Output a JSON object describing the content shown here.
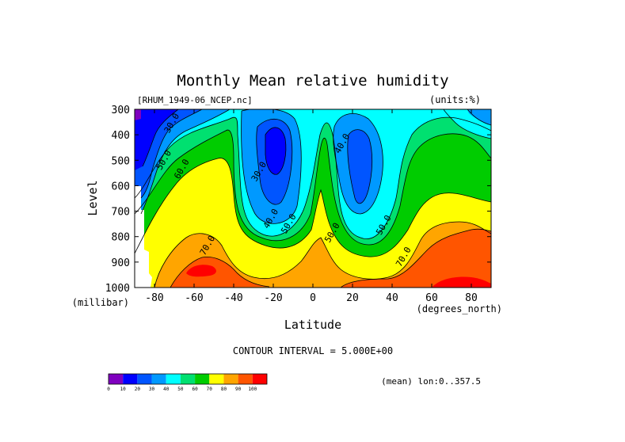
{
  "chart_data": {
    "type": "contour",
    "title": "Monthly Mean relative humidity",
    "dataset_label": "[RHUM_1949-06_NCEP.nc]",
    "units_label": "(units:%)",
    "xlabel": "Latitude",
    "x_units_label": "(degrees_north)",
    "ylabel": "Level",
    "y_units_label": "(millibar)",
    "xlim": [
      -90,
      90
    ],
    "ylim": [
      1000,
      300
    ],
    "x_ticks": [
      -80,
      -60,
      -40,
      -20,
      0,
      20,
      40,
      60,
      80
    ],
    "x_tick_labels": [
      "-80",
      "-60",
      "-40",
      "-20",
      "0",
      "20",
      "40",
      "60",
      "80"
    ],
    "y_ticks": [
      300,
      400,
      500,
      600,
      700,
      800,
      900,
      1000
    ],
    "y_tick_labels": [
      "300",
      "400",
      "500",
      "600",
      "700",
      "800",
      "900",
      "1000"
    ],
    "contour_interval_text": "CONTOUR INTERVAL = 5.000E+00",
    "mean_text": "(mean) lon:0..357.5",
    "colorbar": {
      "boundaries": [
        0,
        10,
        20,
        30,
        40,
        50,
        60,
        70,
        80,
        90,
        100
      ],
      "labels": [
        "0",
        "10",
        "20",
        "30",
        "40",
        "50",
        "60",
        "70",
        "80",
        "90",
        "100"
      ],
      "colors": [
        "#7f00bf",
        "#0000ff",
        "#0055ff",
        "#0099ff",
        "#00ffff",
        "#00e070",
        "#00cc00",
        "#ffff00",
        "#ffa500",
        "#ff5500",
        "#ff0000"
      ]
    },
    "contour_labels": [
      {
        "text": "30.0",
        "lat": -70,
        "lev": 360
      },
      {
        "text": "50.0",
        "lat": -74,
        "lev": 505
      },
      {
        "text": "60.0",
        "lat": -65,
        "lev": 540
      },
      {
        "text": "70.0",
        "lat": -52,
        "lev": 840
      },
      {
        "text": "30.0",
        "lat": -26,
        "lev": 550
      },
      {
        "text": "40.0",
        "lat": -20,
        "lev": 735
      },
      {
        "text": "50.0",
        "lat": -11,
        "lev": 755
      },
      {
        "text": "40.0",
        "lat": 16,
        "lev": 440
      },
      {
        "text": "50.0",
        "lat": 11,
        "lev": 790
      },
      {
        "text": "50.0",
        "lat": 37,
        "lev": 760
      },
      {
        "text": "70.0",
        "lat": 47,
        "lev": 885
      }
    ]
  }
}
